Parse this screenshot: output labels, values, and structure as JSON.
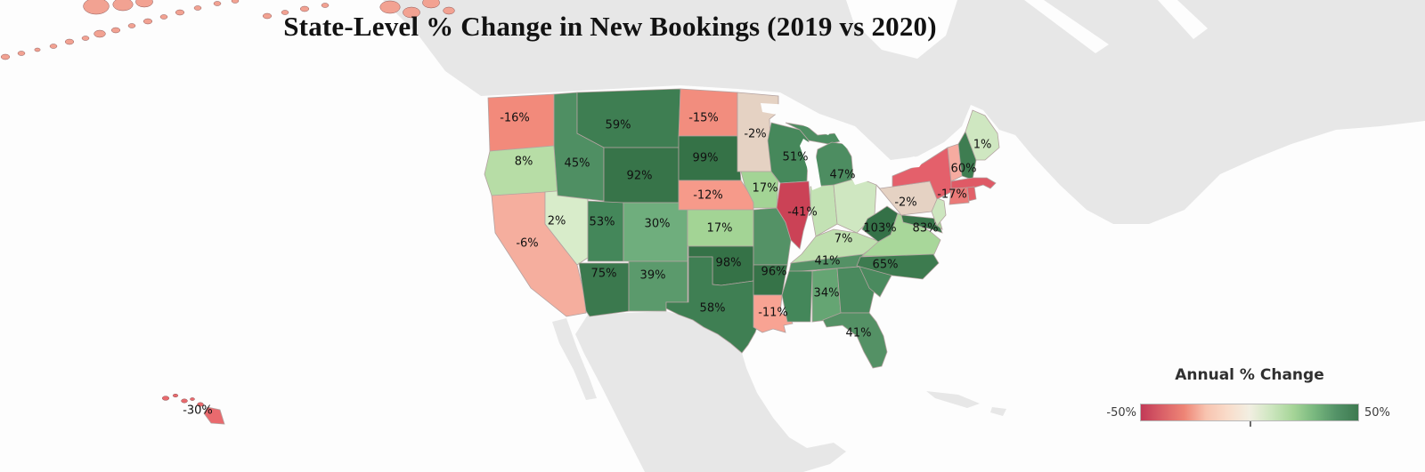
{
  "title": "State-Level % Change in New Bookings (2019 vs 2020)",
  "legend": {
    "title": "Annual % Change",
    "min_label": "-50%",
    "max_label": "50%",
    "gradient_stops": [
      "#c23a57",
      "#da6168",
      "#ee8576",
      "#f8c4b0",
      "#f9dcca",
      "#f2efe2",
      "#cde6bf",
      "#a6d598",
      "#78b77e",
      "#539267",
      "#3d7a50"
    ]
  },
  "chart_data": {
    "type": "choropleth",
    "geo": "USA states",
    "metric": "Annual % change in new bookings (2019 vs 2020)",
    "unit": "%",
    "colorscale_range": [
      -50,
      50
    ],
    "states": [
      {
        "abbr": "WA",
        "name": "Washington",
        "value": -16,
        "label": "-16%",
        "fill": "#f28a7b"
      },
      {
        "abbr": "OR",
        "name": "Oregon",
        "value": 8,
        "label": "8%",
        "fill": "#b7dda6"
      },
      {
        "abbr": "CA",
        "name": "California",
        "value": -6,
        "label": "-6%",
        "fill": "#f5ae9e"
      },
      {
        "abbr": "NV",
        "name": "Nevada",
        "value": 2,
        "label": "2%",
        "fill": "#d8ecca"
      },
      {
        "abbr": "ID",
        "name": "Idaho",
        "value": 45,
        "label": "45%",
        "fill": "#4f8f63"
      },
      {
        "abbr": "MT",
        "name": "Montana",
        "value": 59,
        "label": "59%",
        "fill": "#3e7e52"
      },
      {
        "abbr": "WY",
        "name": "Wyoming",
        "value": 92,
        "label": "92%",
        "fill": "#377449"
      },
      {
        "abbr": "UT",
        "name": "Utah",
        "value": 53,
        "label": "53%",
        "fill": "#44875a"
      },
      {
        "abbr": "CO",
        "name": "Colorado",
        "value": 30,
        "label": "30%",
        "fill": "#6fae7d"
      },
      {
        "abbr": "AZ",
        "name": "Arizona",
        "value": 75,
        "label": "75%",
        "fill": "#3b794e"
      },
      {
        "abbr": "NM",
        "name": "New Mexico",
        "value": 39,
        "label": "39%",
        "fill": "#5b9a6c"
      },
      {
        "abbr": "ND",
        "name": "North Dakota",
        "value": -15,
        "label": "-15%",
        "fill": "#f28d7e"
      },
      {
        "abbr": "SD",
        "name": "South Dakota",
        "value": 99,
        "label": "99%",
        "fill": "#357247"
      },
      {
        "abbr": "NE",
        "name": "Nebraska",
        "value": -12,
        "label": "-12%",
        "fill": "#f69a8a"
      },
      {
        "abbr": "KS",
        "name": "Kansas",
        "value": 17,
        "label": "17%",
        "fill": "#a3d495"
      },
      {
        "abbr": "OK",
        "name": "Oklahoma",
        "value": 98,
        "label": "98%",
        "fill": "#357247"
      },
      {
        "abbr": "TX",
        "name": "Texas",
        "value": 58,
        "label": "58%",
        "fill": "#3f7f53"
      },
      {
        "abbr": "MN",
        "name": "Minnesota",
        "value": -2,
        "label": "-2%",
        "fill": "#e5d2c3"
      },
      {
        "abbr": "IA",
        "name": "Iowa",
        "value": 17,
        "label": "17%",
        "fill": "#a3d495"
      },
      {
        "abbr": "MO",
        "name": "Missouri",
        "value": null,
        "label": null,
        "fill": "#549266"
      },
      {
        "abbr": "AR",
        "name": "Arkansas",
        "value": 96,
        "label": "96%",
        "fill": "#367348"
      },
      {
        "abbr": "LA",
        "name": "Louisiana",
        "value": -11,
        "label": "-11%",
        "fill": "#f8a393"
      },
      {
        "abbr": "WI",
        "name": "Wisconsin",
        "value": 51,
        "label": "51%",
        "fill": "#46885b"
      },
      {
        "abbr": "IL",
        "name": "Illinois",
        "value": -41,
        "label": "-41%",
        "fill": "#cb4256"
      },
      {
        "abbr": "MI",
        "name": "Michigan",
        "value": 47,
        "label": "47%",
        "fill": "#4d8d61"
      },
      {
        "abbr": "IN",
        "name": "Indiana",
        "value": null,
        "label": null,
        "fill": "#c3e2b4"
      },
      {
        "abbr": "OH",
        "name": "Ohio",
        "value": null,
        "label": null,
        "fill": "#cfe7c1"
      },
      {
        "abbr": "KY",
        "name": "Kentucky",
        "value": 7,
        "label": "7%",
        "fill": "#bfe0af"
      },
      {
        "abbr": "TN",
        "name": "Tennessee",
        "value": 41,
        "label": "41%",
        "fill": "#549165"
      },
      {
        "abbr": "MS",
        "name": "Mississippi",
        "value": null,
        "label": null,
        "fill": "#44875a"
      },
      {
        "abbr": "AL",
        "name": "Alabama",
        "value": 34,
        "label": "34%",
        "fill": "#65a573"
      },
      {
        "abbr": "GA",
        "name": "Georgia",
        "value": null,
        "label": null,
        "fill": "#4a8a5e"
      },
      {
        "abbr": "SC",
        "name": "South Carolina",
        "value": null,
        "label": null,
        "fill": "#4a8a5e"
      },
      {
        "abbr": "FL",
        "name": "Florida",
        "value": 41,
        "label": "41%",
        "fill": "#549165"
      },
      {
        "abbr": "VA",
        "name": "Virginia",
        "value": null,
        "label": null,
        "fill": "#a8d79a"
      },
      {
        "abbr": "WV",
        "name": "West Virginia",
        "value": 103,
        "label": "103%",
        "fill": "#347147"
      },
      {
        "abbr": "NC",
        "name": "North Carolina",
        "value": 65,
        "label": "65%",
        "fill": "#3d7b4f"
      },
      {
        "abbr": "MD",
        "name": "Maryland",
        "value": 83,
        "label": "83%",
        "fill": "#387549"
      },
      {
        "abbr": "DE",
        "name": "Delaware",
        "value": null,
        "label": null,
        "fill": "#a8d79a"
      },
      {
        "abbr": "NJ",
        "name": "New Jersey",
        "value": null,
        "label": null,
        "fill": "#cde6bf"
      },
      {
        "abbr": "PA",
        "name": "Pennsylvania",
        "value": -2,
        "label": "-2%",
        "fill": "#e5d2c3"
      },
      {
        "abbr": "NY",
        "name": "New York",
        "value": null,
        "label": null,
        "fill": "#e4606b"
      },
      {
        "abbr": "VT",
        "name": "Vermont",
        "value": null,
        "label": null,
        "fill": "#f6aba0"
      },
      {
        "abbr": "NH",
        "name": "New Hampshire",
        "value": 60,
        "label": "60%",
        "fill": "#3e7d51"
      },
      {
        "abbr": "ME",
        "name": "Maine",
        "value": 1,
        "label": "1%",
        "fill": "#cfe7c1"
      },
      {
        "abbr": "MA",
        "name": "Massachusetts",
        "value": null,
        "label": null,
        "fill": "#df5a66"
      },
      {
        "abbr": "CT",
        "name": "Connecticut",
        "value": -17,
        "label": "-17%",
        "fill": "#ea7a78"
      },
      {
        "abbr": "RI",
        "name": "Rhode Island",
        "value": null,
        "label": null,
        "fill": "#e26068"
      },
      {
        "abbr": "AK",
        "name": "Alaska",
        "value": null,
        "label": null,
        "fill": "#f2a292"
      },
      {
        "abbr": "HI",
        "name": "Hawaii",
        "value": -30,
        "label": "-30%",
        "fill": "#e96a6e"
      }
    ]
  }
}
